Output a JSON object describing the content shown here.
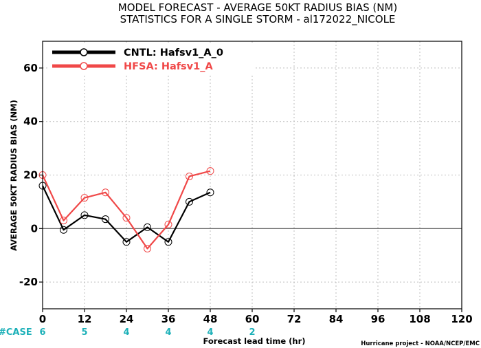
{
  "chart_data": {
    "type": "line",
    "title": "MODEL FORECAST - AVERAGE 50KT RADIUS BIAS (NM)",
    "subtitle": "STATISTICS FOR A SINGLE STORM - al172022_NICOLE",
    "xlabel": "Forecast lead time (hr)",
    "ylabel": "AVERAGE 50KT RADIUS BIAS (NM)",
    "xlim": [
      0,
      120
    ],
    "ylim": [
      -30,
      70
    ],
    "x_ticks": [
      0,
      12,
      24,
      36,
      48,
      60,
      72,
      84,
      96,
      108,
      120
    ],
    "y_ticks": [
      -20,
      0,
      20,
      40,
      60
    ],
    "grid": true,
    "legend_position": "top-left",
    "series": [
      {
        "name": "CNTL: Hafsv1_A_0",
        "color": "#000000",
        "x": [
          0,
          6,
          12,
          18,
          24,
          30,
          36,
          42,
          48
        ],
        "y": [
          16,
          -0.5,
          5,
          3.5,
          -5,
          0.5,
          -5,
          10,
          13.5
        ]
      },
      {
        "name": "HFSA: Hafsv1_A",
        "color": "#f04848",
        "x": [
          0,
          6,
          12,
          18,
          24,
          30,
          36,
          42,
          48
        ],
        "y": [
          20,
          3,
          11.5,
          13.5,
          4,
          -7.5,
          1.5,
          19.5,
          21.5
        ]
      }
    ],
    "case_counts": {
      "label": "#CASE",
      "x": [
        0,
        12,
        24,
        36,
        48,
        60
      ],
      "values": [
        "6",
        "5",
        "4",
        "4",
        "4",
        "2"
      ]
    },
    "credit": "Hurricane project - NOAA/NCEP/EMC"
  },
  "colors": {
    "case_text": "#1cb0b8",
    "zero_line": "#555555",
    "grid": "#bdbdbd"
  }
}
